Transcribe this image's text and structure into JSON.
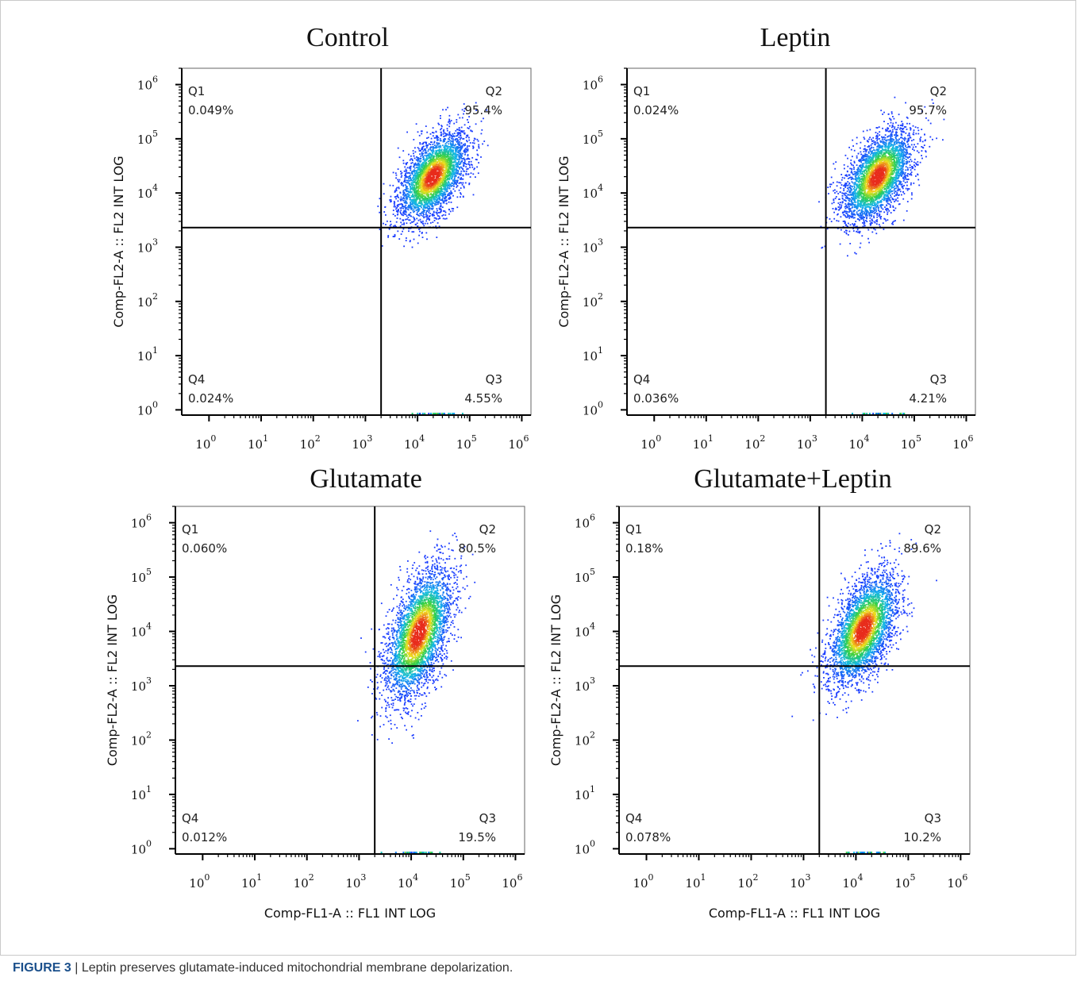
{
  "figure": {
    "caption_label": "FIGURE 3",
    "caption_sep": " | ",
    "caption_text": "Leptin preserves glutamate-induced mitochondrial membrane depolarization."
  },
  "colors": {
    "density_low": "#1b3cff",
    "density_mid_low": "#14b9e8",
    "density_mid": "#2ecf4a",
    "density_high": "#f1e21d",
    "density_peak": "#e82c1c",
    "axes": "#000000"
  },
  "chart_data": [
    {
      "type": "scatter",
      "title": "Control",
      "xlabel": "",
      "ylabel": "Comp-FL2-A :: FL2 INT LOG",
      "x_scale": "log",
      "y_scale": "log",
      "xlim": [
        0.3,
        1500000
      ],
      "ylim": [
        0.8,
        2000000
      ],
      "xticks": [
        "10^0",
        "10^1",
        "10^2",
        "10^3",
        "10^4",
        "10^5",
        "10^6"
      ],
      "yticks": [
        "10^0",
        "10^1",
        "10^2",
        "10^3",
        "10^4",
        "10^5",
        "10^6"
      ],
      "gate": {
        "x": 2000,
        "y": 2300
      },
      "quadrants": [
        {
          "name": "Q1",
          "value": "0.049%",
          "position": "top-left"
        },
        {
          "name": "Q2",
          "value": "95.4%",
          "position": "top-right"
        },
        {
          "name": "Q3",
          "value": "4.55%",
          "position": "bottom-right"
        },
        {
          "name": "Q4",
          "value": "0.024%",
          "position": "bottom-left"
        }
      ],
      "population": {
        "center_x": 20000,
        "center_y": 20000,
        "spread_x_decades": 0.33,
        "spread_y_decades": 0.4,
        "events": 3400
      },
      "grid": false
    },
    {
      "type": "scatter",
      "title": "Leptin",
      "xlabel": "",
      "ylabel": "Comp-FL2-A :: FL2 INT LOG",
      "x_scale": "log",
      "y_scale": "log",
      "xlim": [
        0.3,
        1500000
      ],
      "ylim": [
        0.8,
        2000000
      ],
      "xticks": [
        "10^0",
        "10^1",
        "10^2",
        "10^3",
        "10^4",
        "10^5",
        "10^6"
      ],
      "yticks": [
        "10^0",
        "10^1",
        "10^2",
        "10^3",
        "10^4",
        "10^5",
        "10^6"
      ],
      "gate": {
        "x": 2000,
        "y": 2300
      },
      "quadrants": [
        {
          "name": "Q1",
          "value": "0.024%",
          "position": "top-left"
        },
        {
          "name": "Q2",
          "value": "95.7%",
          "position": "top-right"
        },
        {
          "name": "Q3",
          "value": "4.21%",
          "position": "bottom-right"
        },
        {
          "name": "Q4",
          "value": "0.036%",
          "position": "bottom-left"
        }
      ],
      "population": {
        "center_x": 20000,
        "center_y": 20000,
        "spread_x_decades": 0.33,
        "spread_y_decades": 0.42,
        "events": 3400
      },
      "grid": false
    },
    {
      "type": "scatter",
      "title": "Glutamate",
      "xlabel": "Comp-FL1-A :: FL1 INT LOG",
      "ylabel": "Comp-FL2-A :: FL2 INT LOG",
      "x_scale": "log",
      "y_scale": "log",
      "xlim": [
        0.3,
        1500000
      ],
      "ylim": [
        0.8,
        2000000
      ],
      "xticks": [
        "10^0",
        "10^1",
        "10^2",
        "10^3",
        "10^4",
        "10^5",
        "10^6"
      ],
      "yticks": [
        "10^0",
        "10^1",
        "10^2",
        "10^3",
        "10^4",
        "10^5",
        "10^6"
      ],
      "gate": {
        "x": 2000,
        "y": 2300
      },
      "quadrants": [
        {
          "name": "Q1",
          "value": "0.060%",
          "position": "top-left"
        },
        {
          "name": "Q2",
          "value": "80.5%",
          "position": "top-right"
        },
        {
          "name": "Q3",
          "value": "19.5%",
          "position": "bottom-right"
        },
        {
          "name": "Q4",
          "value": "0.012%",
          "position": "bottom-left"
        }
      ],
      "population": {
        "center_x": 14000,
        "center_y": 9000,
        "spread_x_decades": 0.32,
        "spread_y_decades": 0.6,
        "events": 3600
      },
      "grid": false
    },
    {
      "type": "scatter",
      "title": "Glutamate+Leptin",
      "xlabel": "Comp-FL1-A :: FL1 INT LOG",
      "ylabel": "Comp-FL2-A :: FL2 INT LOG",
      "x_scale": "log",
      "y_scale": "log",
      "xlim": [
        0.3,
        1500000
      ],
      "ylim": [
        0.8,
        2000000
      ],
      "xticks": [
        "10^0",
        "10^1",
        "10^2",
        "10^3",
        "10^4",
        "10^5",
        "10^6"
      ],
      "yticks": [
        "10^0",
        "10^1",
        "10^2",
        "10^3",
        "10^4",
        "10^5",
        "10^6"
      ],
      "gate": {
        "x": 2000,
        "y": 2300
      },
      "quadrants": [
        {
          "name": "Q1",
          "value": "0.18%",
          "position": "top-left"
        },
        {
          "name": "Q2",
          "value": "89.6%",
          "position": "top-right"
        },
        {
          "name": "Q3",
          "value": "10.2%",
          "position": "bottom-right"
        },
        {
          "name": "Q4",
          "value": "0.078%",
          "position": "bottom-left"
        }
      ],
      "population": {
        "center_x": 14000,
        "center_y": 11000,
        "spread_x_decades": 0.33,
        "spread_y_decades": 0.5,
        "events": 3600
      },
      "grid": false
    }
  ]
}
